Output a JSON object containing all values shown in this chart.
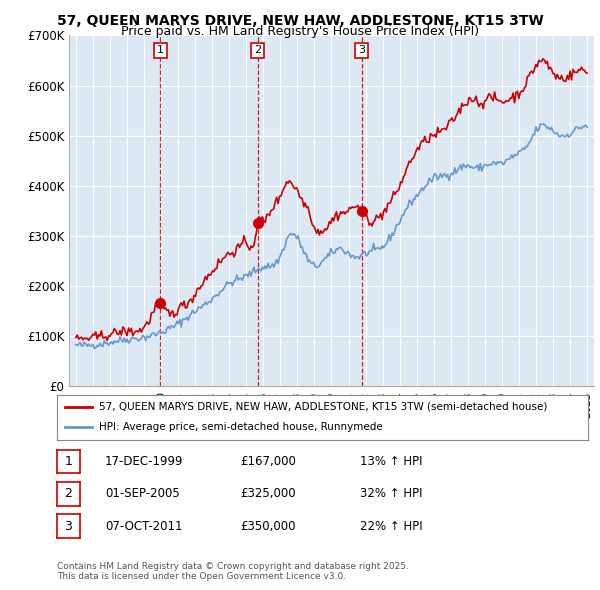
{
  "title": "57, QUEEN MARYS DRIVE, NEW HAW, ADDLESTONE, KT15 3TW",
  "subtitle": "Price paid vs. HM Land Registry's House Price Index (HPI)",
  "ylim": [
    0,
    700000
  ],
  "yticks": [
    0,
    100000,
    200000,
    300000,
    400000,
    500000,
    600000,
    700000
  ],
  "ytick_labels": [
    "£0",
    "£100K",
    "£200K",
    "£300K",
    "£400K",
    "£500K",
    "£600K",
    "£700K"
  ],
  "sale_years": [
    1999.96,
    2005.67,
    2011.77
  ],
  "sale_prices": [
    167000,
    325000,
    350000
  ],
  "sale_labels": [
    "1",
    "2",
    "3"
  ],
  "legend_entries": [
    "57, QUEEN MARYS DRIVE, NEW HAW, ADDLESTONE, KT15 3TW (semi-detached house)",
    "HPI: Average price, semi-detached house, Runnymede"
  ],
  "table_entries": [
    {
      "label": "1",
      "date": "17-DEC-1999",
      "price": "£167,000",
      "hpi": "13% ↑ HPI"
    },
    {
      "label": "2",
      "date": "01-SEP-2005",
      "price": "£325,000",
      "hpi": "32% ↑ HPI"
    },
    {
      "label": "3",
      "date": "07-OCT-2011",
      "price": "£350,000",
      "hpi": "22% ↑ HPI"
    }
  ],
  "footer": "Contains HM Land Registry data © Crown copyright and database right 2025.\nThis data is licensed under the Open Government Licence v3.0.",
  "red_color": "#cc0000",
  "blue_color": "#6699cc",
  "chart_bg": "#dce9f5",
  "grid_color": "#ffffff",
  "vline_color": "#cc0000",
  "bg_color": "#ffffff",
  "title_fontsize": 10,
  "subtitle_fontsize": 9,
  "hpi_key_points": [
    [
      1995.0,
      82000
    ],
    [
      1996.0,
      83000
    ],
    [
      1997.0,
      88000
    ],
    [
      1998.0,
      94000
    ],
    [
      1999.0,
      98000
    ],
    [
      2000.0,
      108000
    ],
    [
      2001.0,
      125000
    ],
    [
      2002.0,
      150000
    ],
    [
      2003.0,
      175000
    ],
    [
      2004.0,
      205000
    ],
    [
      2005.0,
      220000
    ],
    [
      2006.0,
      238000
    ],
    [
      2007.0,
      260000
    ],
    [
      2007.5,
      300000
    ],
    [
      2008.0,
      295000
    ],
    [
      2008.5,
      260000
    ],
    [
      2009.0,
      240000
    ],
    [
      2009.5,
      250000
    ],
    [
      2010.0,
      265000
    ],
    [
      2010.5,
      275000
    ],
    [
      2011.0,
      265000
    ],
    [
      2011.5,
      258000
    ],
    [
      2012.0,
      265000
    ],
    [
      2012.5,
      270000
    ],
    [
      2013.0,
      278000
    ],
    [
      2013.5,
      300000
    ],
    [
      2014.0,
      330000
    ],
    [
      2014.5,
      360000
    ],
    [
      2015.0,
      380000
    ],
    [
      2015.5,
      400000
    ],
    [
      2016.0,
      415000
    ],
    [
      2016.5,
      420000
    ],
    [
      2017.0,
      425000
    ],
    [
      2017.5,
      435000
    ],
    [
      2018.0,
      440000
    ],
    [
      2018.5,
      435000
    ],
    [
      2019.0,
      440000
    ],
    [
      2019.5,
      445000
    ],
    [
      2020.0,
      445000
    ],
    [
      2020.5,
      455000
    ],
    [
      2021.0,
      465000
    ],
    [
      2021.5,
      480000
    ],
    [
      2022.0,
      510000
    ],
    [
      2022.5,
      520000
    ],
    [
      2023.0,
      510000
    ],
    [
      2023.5,
      500000
    ],
    [
      2024.0,
      505000
    ],
    [
      2024.5,
      515000
    ],
    [
      2025.0,
      520000
    ]
  ],
  "red_key_points": [
    [
      1995.0,
      95000
    ],
    [
      1996.0,
      97000
    ],
    [
      1997.0,
      104000
    ],
    [
      1998.0,
      110000
    ],
    [
      1999.0,
      118000
    ],
    [
      1999.5,
      145000
    ],
    [
      1999.96,
      167000
    ],
    [
      2000.2,
      155000
    ],
    [
      2000.8,
      148000
    ],
    [
      2001.0,
      155000
    ],
    [
      2001.5,
      165000
    ],
    [
      2002.0,
      185000
    ],
    [
      2002.5,
      210000
    ],
    [
      2003.0,
      230000
    ],
    [
      2003.5,
      250000
    ],
    [
      2004.0,
      265000
    ],
    [
      2004.5,
      275000
    ],
    [
      2005.0,
      285000
    ],
    [
      2005.5,
      295000
    ],
    [
      2005.67,
      325000
    ],
    [
      2006.0,
      330000
    ],
    [
      2006.5,
      355000
    ],
    [
      2007.0,
      380000
    ],
    [
      2007.3,
      405000
    ],
    [
      2007.8,
      400000
    ],
    [
      2008.0,
      390000
    ],
    [
      2008.3,
      370000
    ],
    [
      2008.8,
      340000
    ],
    [
      2009.0,
      315000
    ],
    [
      2009.2,
      310000
    ],
    [
      2009.8,
      320000
    ],
    [
      2010.0,
      330000
    ],
    [
      2010.5,
      345000
    ],
    [
      2011.0,
      350000
    ],
    [
      2011.5,
      360000
    ],
    [
      2011.77,
      350000
    ],
    [
      2012.0,
      340000
    ],
    [
      2012.3,
      330000
    ],
    [
      2012.7,
      335000
    ],
    [
      2013.0,
      345000
    ],
    [
      2013.5,
      370000
    ],
    [
      2014.0,
      400000
    ],
    [
      2014.5,
      440000
    ],
    [
      2015.0,
      470000
    ],
    [
      2015.5,
      490000
    ],
    [
      2016.0,
      500000
    ],
    [
      2016.5,
      510000
    ],
    [
      2017.0,
      525000
    ],
    [
      2017.5,
      550000
    ],
    [
      2018.0,
      570000
    ],
    [
      2018.3,
      575000
    ],
    [
      2018.7,
      565000
    ],
    [
      2019.0,
      570000
    ],
    [
      2019.5,
      575000
    ],
    [
      2020.0,
      568000
    ],
    [
      2020.5,
      575000
    ],
    [
      2021.0,
      585000
    ],
    [
      2021.5,
      610000
    ],
    [
      2022.0,
      640000
    ],
    [
      2022.3,
      650000
    ],
    [
      2022.6,
      645000
    ],
    [
      2023.0,
      625000
    ],
    [
      2023.5,
      615000
    ],
    [
      2024.0,
      620000
    ],
    [
      2024.5,
      630000
    ],
    [
      2025.0,
      625000
    ]
  ]
}
